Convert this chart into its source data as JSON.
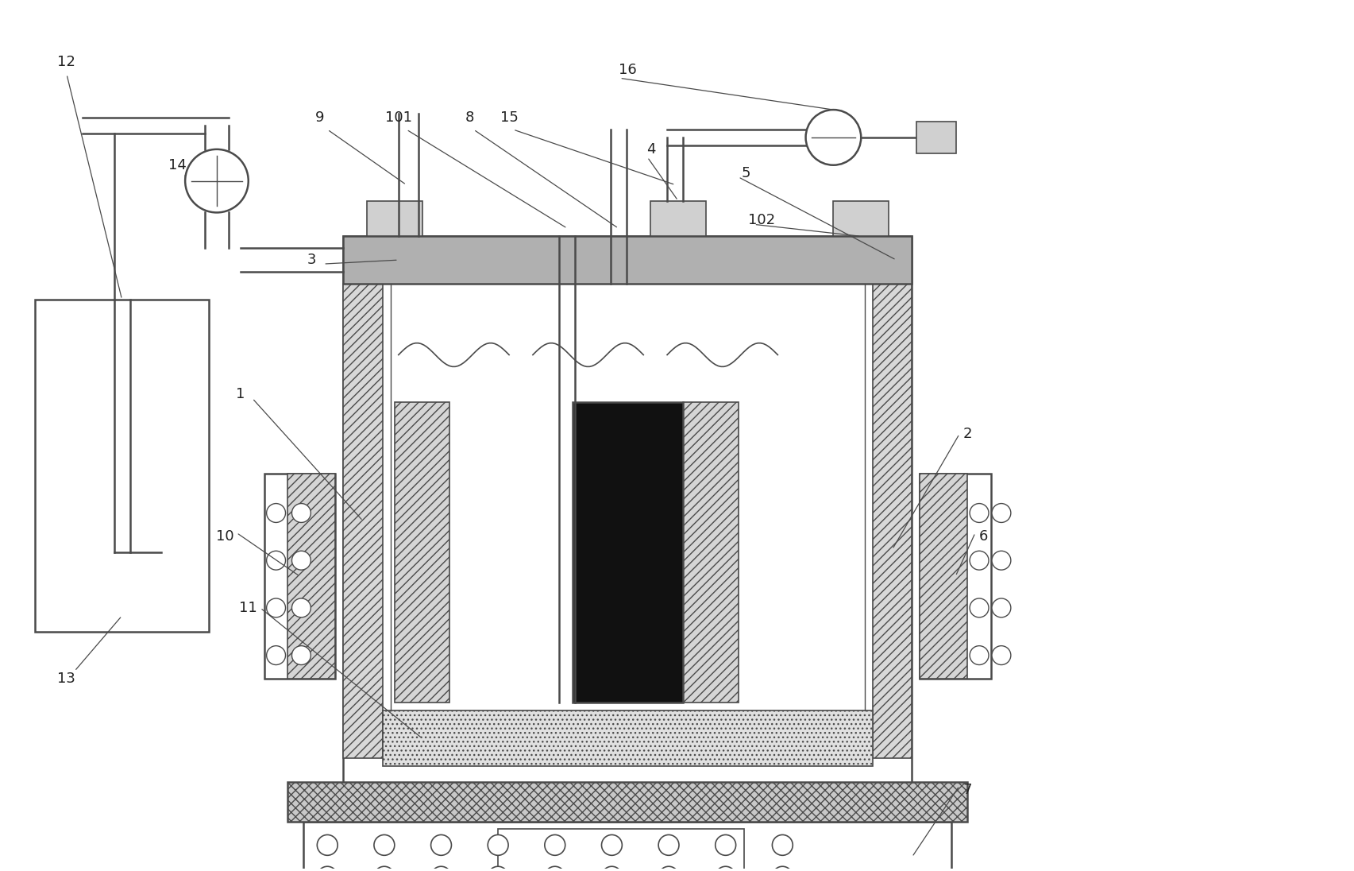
{
  "bg_color": "#ffffff",
  "lc": "#4a4a4a",
  "lw_main": 1.8,
  "lw_thin": 1.2,
  "gray_dark": "#aaaaaa",
  "gray_mid": "#cccccc",
  "gray_light": "#e8e8e8",
  "dark_fill": "#111111",
  "hatch_diag": "///",
  "hatch_cross": "xxx",
  "hatch_dot": "...",
  "fs": 13
}
